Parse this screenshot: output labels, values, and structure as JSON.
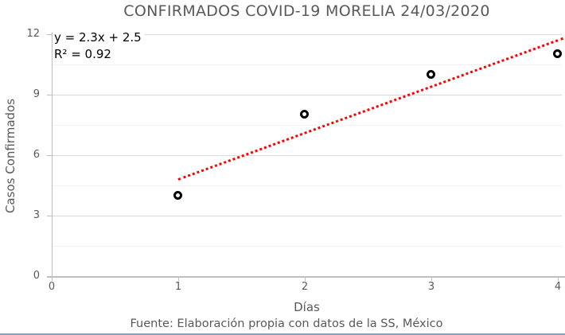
{
  "title": "CONFIRMADOS COVID-19 MORELIA 24/03/2020",
  "footer": {
    "text": "Fuente: Elaboración propia con datos de la SS, México"
  },
  "colors": {
    "text": "#595959",
    "grid_major": "#d9d9d9",
    "grid_minor": "#f2f2f2",
    "axis": "#bfbfbf",
    "marker": "#000000",
    "trendline": "#ff0000",
    "bottom_border": "#8aa0bf"
  },
  "chart_data": {
    "type": "scatter",
    "title": "CONFIRMADOS COVID-19 MORELIA 24/03/2020",
    "xlabel": "Días",
    "ylabel": "Casos Confirmados",
    "x": [
      1,
      2,
      3,
      4
    ],
    "y": [
      4,
      8,
      10,
      11
    ],
    "xlim": [
      0,
      4
    ],
    "ylim": [
      0,
      12
    ],
    "x_ticks": [
      0,
      1,
      2,
      3,
      4
    ],
    "y_ticks": [
      0,
      3,
      6,
      9,
      12
    ],
    "y_minor_ticks": [
      1.5,
      4.5,
      7.5,
      10.5
    ],
    "grid": {
      "major": true,
      "minor": true
    },
    "legend": "none",
    "marker_style": "black-ring",
    "trendline": {
      "equation_label": "y = 2.3x + 2.5",
      "r2_label": "R² = 0.92",
      "slope": 2.3,
      "intercept": 2.5,
      "x_start": 1.0,
      "x_end": 4.04,
      "style": "dotted",
      "color": "#ff0000"
    }
  }
}
